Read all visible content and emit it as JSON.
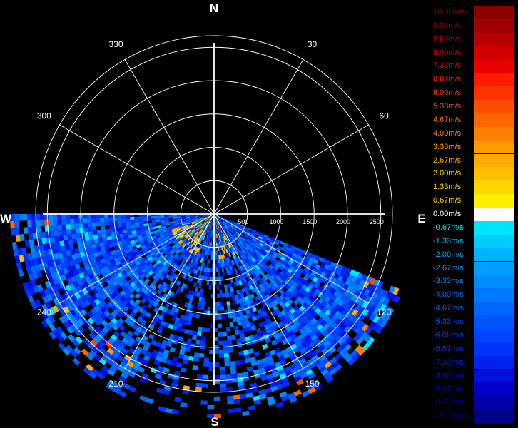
{
  "compass": {
    "north": "N",
    "south": "S",
    "east": "E",
    "west": "W"
  },
  "chart_data": {
    "type": "heatmap",
    "subtype": "polar radar radial velocity (PPI sector scan)",
    "title": "",
    "bearing_ticks": [
      {
        "deg": 30,
        "label": "30"
      },
      {
        "deg": 60,
        "label": "60"
      },
      {
        "deg": 120,
        "label": "120"
      },
      {
        "deg": 150,
        "label": "150"
      },
      {
        "deg": 210,
        "label": "210"
      },
      {
        "deg": 240,
        "label": "240"
      },
      {
        "deg": 300,
        "label": "300"
      },
      {
        "deg": 330,
        "label": "330"
      }
    ],
    "range_ticks": [
      {
        "value": 500,
        "label": "500"
      },
      {
        "value": 1000,
        "label": "1000"
      },
      {
        "value": 1500,
        "label": "1500"
      },
      {
        "value": 2000,
        "label": "2000"
      },
      {
        "value": 2500,
        "label": "2500"
      }
    ],
    "range_max": 2600,
    "range_unit": "m",
    "scan_sector_deg": [
      112,
      270
    ],
    "color_scale": [
      {
        "value": 10.0,
        "label": "10.00m/s",
        "color": "#8b0000"
      },
      {
        "value": 9.33,
        "label": "9.33m/s",
        "color": "#a00000"
      },
      {
        "value": 8.67,
        "label": "8.67m/s",
        "color": "#b80000"
      },
      {
        "value": 8.0,
        "label": "8.00m/s",
        "color": "#d00000"
      },
      {
        "value": 7.33,
        "label": "7.33m/s",
        "color": "#e80000"
      },
      {
        "value": 6.67,
        "label": "6.67m/s",
        "color": "#ff1a00"
      },
      {
        "value": 6.0,
        "label": "6.00m/s",
        "color": "#ff3300"
      },
      {
        "value": 5.33,
        "label": "5.33m/s",
        "color": "#ff4d00"
      },
      {
        "value": 4.67,
        "label": "4.67m/s",
        "color": "#ff6600"
      },
      {
        "value": 4.0,
        "label": "4.00m/s",
        "color": "#ff8000"
      },
      {
        "value": 3.33,
        "label": "3.33m/s",
        "color": "#ff9900"
      },
      {
        "value": 2.67,
        "label": "2.67m/s",
        "color": "#ffaa00"
      },
      {
        "value": 2.0,
        "label": "2.00m/s",
        "color": "#ffbf00"
      },
      {
        "value": 1.33,
        "label": "1.33m/s",
        "color": "#ffd500"
      },
      {
        "value": 0.67,
        "label": "0.67m/s",
        "color": "#ffee00"
      },
      {
        "value": 0.0,
        "label": "0.00m/s",
        "color": "#ffffff"
      },
      {
        "value": -0.67,
        "label": "-0.67m/s",
        "color": "#00e5ff"
      },
      {
        "value": -1.33,
        "label": "-1.33m/s",
        "color": "#00ccff"
      },
      {
        "value": -2.0,
        "label": "-2.00m/s",
        "color": "#00b3ff"
      },
      {
        "value": -2.67,
        "label": "-2.67m/s",
        "color": "#009fff"
      },
      {
        "value": -3.33,
        "label": "-3.33m/s",
        "color": "#008cff"
      },
      {
        "value": -4.0,
        "label": "-4.00m/s",
        "color": "#0078ff"
      },
      {
        "value": -4.67,
        "label": "-4.67m/s",
        "color": "#0066ff"
      },
      {
        "value": -5.33,
        "label": "-5.33m/s",
        "color": "#0055ff"
      },
      {
        "value": -6.0,
        "label": "-6.00m/s",
        "color": "#0044ff"
      },
      {
        "value": -6.67,
        "label": "-6.67m/s",
        "color": "#0033ff"
      },
      {
        "value": -7.33,
        "label": "-7.33m/s",
        "color": "#0022ee"
      },
      {
        "value": -8.0,
        "label": "-8.00m/s",
        "color": "#0011dd"
      },
      {
        "value": -8.67,
        "label": "-8.67m/s",
        "color": "#0000cc"
      },
      {
        "value": -9.33,
        "label": "-9.33m/s",
        "color": "#0000aa"
      },
      {
        "value": -10.0,
        "label": "-10.00m/s",
        "color": "#000088"
      }
    ]
  }
}
